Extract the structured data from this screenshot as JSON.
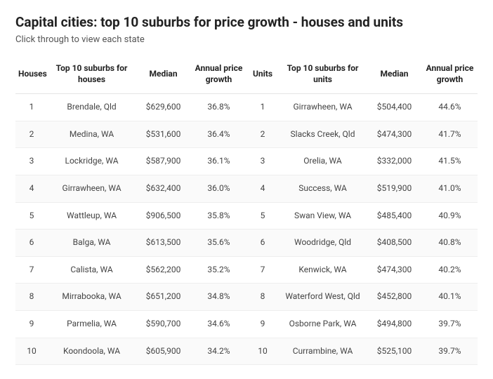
{
  "title": "Capital cities: top 10 suburbs for price growth - houses and units",
  "subtitle": "Click through to view each state",
  "headers": {
    "houses_rank": "Houses",
    "houses_suburb": "Top 10 suburbs for houses",
    "houses_median": "Median",
    "houses_growth": "Annual price growth",
    "units_rank": "Units",
    "units_suburb": "Top 10 suburbs for units",
    "units_median": "Median",
    "units_growth": "Annual price growth"
  },
  "rows": [
    {
      "h_rank": "1",
      "h_suburb": "Brendale, Qld",
      "h_median": "$629,600",
      "h_growth": "36.8%",
      "u_rank": "1",
      "u_suburb": "Girrawheen, WA",
      "u_median": "$504,400",
      "u_growth": "44.6%"
    },
    {
      "h_rank": "2",
      "h_suburb": "Medina, WA",
      "h_median": "$531,600",
      "h_growth": "36.4%",
      "u_rank": "2",
      "u_suburb": "Slacks Creek, Qld",
      "u_median": "$474,300",
      "u_growth": "41.7%"
    },
    {
      "h_rank": "3",
      "h_suburb": "Lockridge, WA",
      "h_median": "$587,900",
      "h_growth": "36.1%",
      "u_rank": "3",
      "u_suburb": "Orelia, WA",
      "u_median": "$332,000",
      "u_growth": "41.5%"
    },
    {
      "h_rank": "4",
      "h_suburb": "Girrawheen, WA",
      "h_median": "$632,400",
      "h_growth": "36.0%",
      "u_rank": "4",
      "u_suburb": "Success, WA",
      "u_median": "$519,900",
      "u_growth": "41.0%"
    },
    {
      "h_rank": "5",
      "h_suburb": "Wattleup, WA",
      "h_median": "$906,500",
      "h_growth": "35.8%",
      "u_rank": "5",
      "u_suburb": "Swan View, WA",
      "u_median": "$485,400",
      "u_growth": "40.9%"
    },
    {
      "h_rank": "6",
      "h_suburb": "Balga, WA",
      "h_median": "$613,500",
      "h_growth": "35.6%",
      "u_rank": "6",
      "u_suburb": "Woodridge, Qld",
      "u_median": "$408,500",
      "u_growth": "40.8%"
    },
    {
      "h_rank": "7",
      "h_suburb": "Calista, WA",
      "h_median": "$562,200",
      "h_growth": "35.2%",
      "u_rank": "7",
      "u_suburb": "Kenwick, WA",
      "u_median": "$474,300",
      "u_growth": "40.2%"
    },
    {
      "h_rank": "8",
      "h_suburb": "Mirrabooka, WA",
      "h_median": "$651,200",
      "h_growth": "34.8%",
      "u_rank": "8",
      "u_suburb": "Waterford West, Qld",
      "u_median": "$452,800",
      "u_growth": "40.1%"
    },
    {
      "h_rank": "9",
      "h_suburb": "Parmelia, WA",
      "h_median": "$590,700",
      "h_growth": "34.6%",
      "u_rank": "9",
      "u_suburb": "Osborne Park, WA",
      "u_median": "$494,800",
      "u_growth": "39.7%"
    },
    {
      "h_rank": "10",
      "h_suburb": "Koondoola, WA",
      "h_median": "$605,900",
      "h_growth": "34.2%",
      "u_rank": "10",
      "u_suburb": "Currambine, WA",
      "u_median": "$525,100",
      "u_growth": "39.7%"
    }
  ]
}
